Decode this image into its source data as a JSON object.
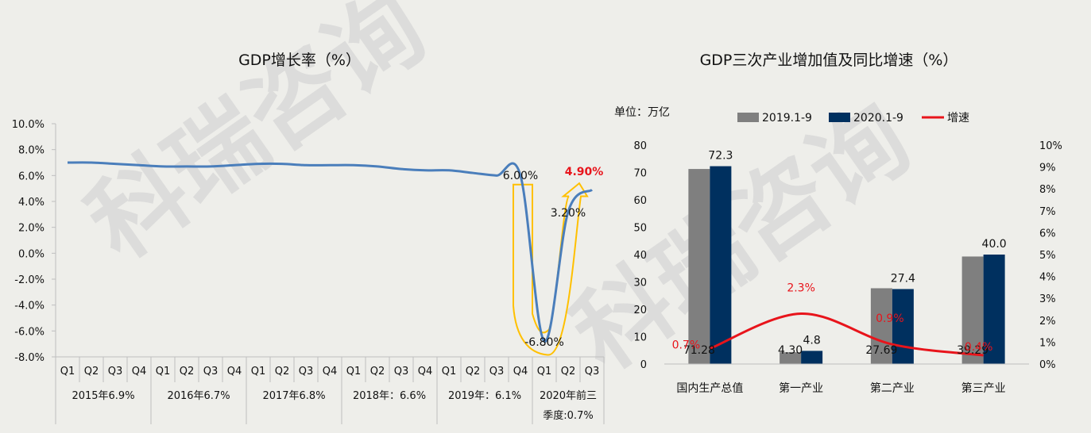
{
  "colors": {
    "background": "#EEEEEA",
    "line": "#4A7EBB",
    "highlight_arrow": "#FFC000",
    "bar_2019": "#7F7F7F",
    "bar_2020": "#00305F",
    "growth_line": "#E8141B",
    "emphasis_text": "#E8141B"
  },
  "watermark_text": "科瑞咨询",
  "left_chart": {
    "title": "GDP增长率（%）",
    "y_ticks": [
      "10.0%",
      "8.0%",
      "6.0%",
      "4.0%",
      "2.0%",
      "0.0%",
      "-2.0%",
      "-4.0%",
      "-6.0%",
      "-8.0%"
    ],
    "quarter_labels": [
      "Q1",
      "Q2",
      "Q3",
      "Q4",
      "Q1",
      "Q2",
      "Q3",
      "Q4",
      "Q1",
      "Q2",
      "Q3",
      "Q4",
      "Q1",
      "Q2",
      "Q3",
      "Q4",
      "Q1",
      "Q2",
      "Q3",
      "Q4",
      "Q1",
      "Q2",
      "Q3"
    ],
    "year_groups": [
      {
        "label": "2015年6.9%",
        "quarters": 4
      },
      {
        "label": "2016年6.7%",
        "quarters": 4
      },
      {
        "label": "2017年6.8%",
        "quarters": 4
      },
      {
        "label": "2018年：6.6%",
        "quarters": 4
      },
      {
        "label": "2019年：6.1%",
        "quarters": 4
      },
      {
        "label_line1": "2020年前三",
        "label_line2": "季度:0.7%",
        "quarters": 3
      }
    ],
    "annotations": {
      "q4_2019": "6.00%",
      "q1_2020": "-6.80%",
      "q2_2020": "3.20%",
      "q3_2020": "4.90%"
    }
  },
  "right_chart": {
    "title": "GDP三次产业增加值及同比增速（%）",
    "unit_label": "单位：万亿",
    "legend": [
      "2019.1-9",
      "2020.1-9",
      "增速"
    ],
    "y_left_ticks": [
      "80",
      "70",
      "60",
      "50",
      "40",
      "30",
      "20",
      "10",
      "0"
    ],
    "y_right_ticks": [
      "10%",
      "9%",
      "8%",
      "7%",
      "6%",
      "5%",
      "4%",
      "3%",
      "2%",
      "1%",
      "0%"
    ],
    "bar_value_labels_2019": [
      "71.28",
      "4.30",
      "27.69",
      "39.29"
    ],
    "bar_value_labels_2020": [
      "72.3",
      "4.8",
      "27.4",
      "40.0"
    ],
    "growth_labels": [
      "0.7%",
      "2.3%",
      "0.9%",
      "0.4%"
    ]
  },
  "chart_data": [
    {
      "type": "line",
      "title": "GDP增长率（%）",
      "ylim": [
        -8,
        10
      ],
      "x": [
        "2015Q1",
        "2015Q2",
        "2015Q3",
        "2015Q4",
        "2016Q1",
        "2016Q2",
        "2016Q3",
        "2016Q4",
        "2017Q1",
        "2017Q2",
        "2017Q3",
        "2017Q4",
        "2018Q1",
        "2018Q2",
        "2018Q3",
        "2018Q4",
        "2019Q1",
        "2019Q2",
        "2019Q3",
        "2019Q4",
        "2020Q1",
        "2020Q2",
        "2020Q3"
      ],
      "values": [
        7.0,
        7.0,
        6.9,
        6.8,
        6.7,
        6.7,
        6.7,
        6.8,
        6.9,
        6.9,
        6.8,
        6.8,
        6.8,
        6.7,
        6.5,
        6.4,
        6.4,
        6.2,
        6.0,
        6.0,
        -6.8,
        3.2,
        4.9
      ]
    },
    {
      "type": "bar",
      "title": "GDP三次产业增加值及同比增速（%）",
      "categories": [
        "国内生产总值",
        "第一产业",
        "第二产业",
        "第三产业"
      ],
      "ylim": [
        0,
        80
      ],
      "y2lim": [
        0,
        10
      ],
      "series": [
        {
          "name": "2019.1-9",
          "values": [
            71.28,
            4.3,
            27.69,
            39.29
          ]
        },
        {
          "name": "2020.1-9",
          "values": [
            72.3,
            4.8,
            27.4,
            40.0
          ]
        },
        {
          "name": "增速",
          "type": "line",
          "axis": "right",
          "values": [
            0.7,
            2.3,
            0.9,
            0.4
          ]
        }
      ]
    }
  ]
}
